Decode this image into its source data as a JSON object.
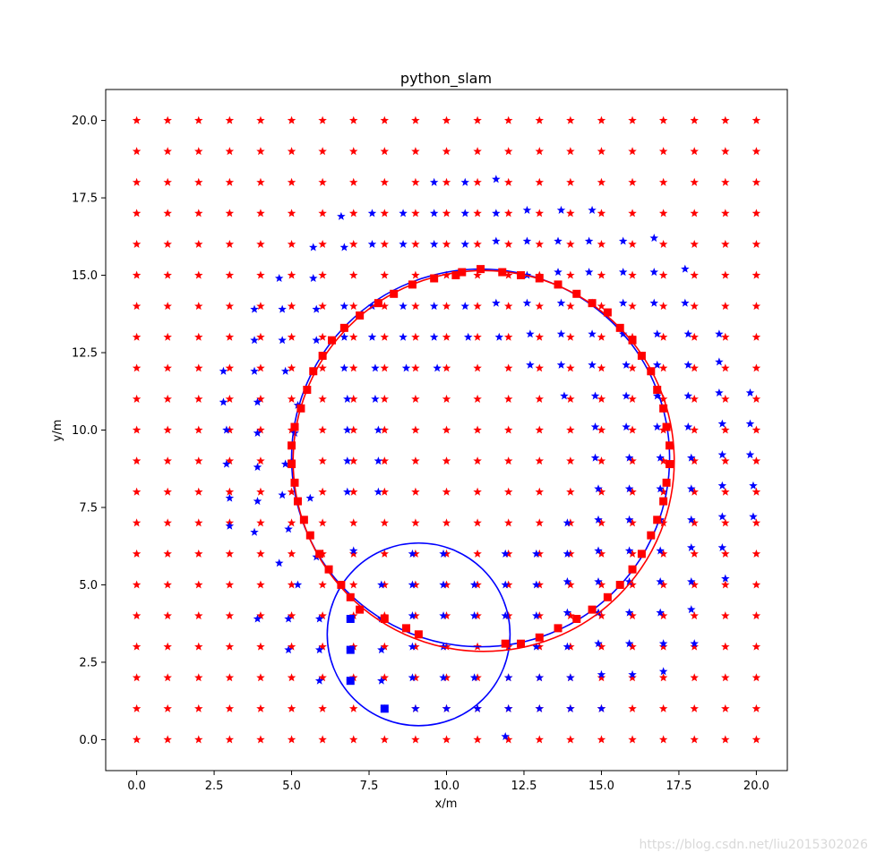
{
  "chart_data": {
    "type": "scatter",
    "title": "python_slam",
    "xlabel": "x/m",
    "ylabel": "y/m",
    "xlim": [
      -1.0,
      21.0
    ],
    "ylim": [
      -1.0,
      21.0
    ],
    "xticks": [
      0.0,
      2.5,
      5.0,
      7.5,
      10.0,
      12.5,
      15.0,
      17.5,
      20.0
    ],
    "yticks": [
      0.0,
      2.5,
      5.0,
      7.5,
      10.0,
      12.5,
      15.0,
      17.5,
      20.0
    ],
    "grid": false,
    "legend": "none",
    "landmarks_true": {
      "name": "",
      "color": "#ff0000",
      "marker": "star",
      "x_range": [
        0,
        20
      ],
      "y_range": [
        0,
        20
      ],
      "step": 1
    },
    "landmarks_estimated": {
      "name": "",
      "color": "#0000ff",
      "marker": "star",
      "points": [
        [
          5.2,
          5.0
        ],
        [
          4.6,
          5.7
        ],
        [
          5.8,
          5.9
        ],
        [
          7.0,
          6.1
        ],
        [
          4.9,
          6.8
        ],
        [
          3.8,
          6.7
        ],
        [
          3.0,
          6.9
        ],
        [
          5.6,
          7.8
        ],
        [
          4.7,
          7.9
        ],
        [
          3.9,
          7.7
        ],
        [
          3.0,
          7.8
        ],
        [
          4.8,
          8.9
        ],
        [
          3.9,
          8.8
        ],
        [
          2.9,
          8.9
        ],
        [
          5.1,
          9.9
        ],
        [
          3.9,
          9.9
        ],
        [
          2.9,
          10.0
        ],
        [
          5.2,
          10.8
        ],
        [
          3.9,
          10.9
        ],
        [
          2.8,
          10.9
        ],
        [
          4.8,
          11.9
        ],
        [
          3.8,
          11.9
        ],
        [
          2.8,
          11.9
        ],
        [
          3.8,
          12.9
        ],
        [
          4.7,
          12.9
        ],
        [
          5.8,
          12.9
        ],
        [
          3.8,
          13.9
        ],
        [
          4.7,
          13.9
        ],
        [
          5.8,
          13.9
        ],
        [
          4.6,
          14.9
        ],
        [
          5.7,
          14.9
        ],
        [
          5.7,
          15.9
        ],
        [
          6.7,
          15.9
        ],
        [
          6.6,
          16.9
        ],
        [
          7.6,
          17.0
        ],
        [
          8.6,
          17.0
        ],
        [
          9.6,
          17.0
        ],
        [
          10.6,
          17.0
        ],
        [
          11.6,
          17.0
        ],
        [
          12.6,
          17.1
        ],
        [
          13.7,
          17.1
        ],
        [
          14.7,
          17.1
        ],
        [
          9.6,
          18.0
        ],
        [
          10.6,
          18.0
        ],
        [
          11.6,
          18.1
        ],
        [
          7.6,
          16.0
        ],
        [
          8.6,
          16.0
        ],
        [
          9.6,
          16.0
        ],
        [
          10.6,
          16.0
        ],
        [
          11.6,
          16.1
        ],
        [
          12.6,
          16.1
        ],
        [
          13.6,
          16.1
        ],
        [
          14.6,
          16.1
        ],
        [
          15.7,
          16.1
        ],
        [
          16.7,
          16.2
        ],
        [
          15.7,
          15.1
        ],
        [
          16.7,
          15.1
        ],
        [
          17.7,
          15.2
        ],
        [
          14.6,
          15.1
        ],
        [
          13.6,
          15.1
        ],
        [
          12.6,
          15.0
        ],
        [
          6.7,
          14.0
        ],
        [
          7.6,
          14.0
        ],
        [
          8.6,
          14.0
        ],
        [
          9.6,
          14.0
        ],
        [
          10.6,
          14.0
        ],
        [
          11.6,
          14.1
        ],
        [
          12.6,
          14.1
        ],
        [
          13.7,
          14.1
        ],
        [
          14.7,
          14.1
        ],
        [
          15.7,
          14.1
        ],
        [
          16.7,
          14.1
        ],
        [
          17.7,
          14.1
        ],
        [
          6.7,
          13.0
        ],
        [
          7.6,
          13.0
        ],
        [
          8.6,
          13.0
        ],
        [
          9.6,
          13.0
        ],
        [
          10.7,
          13.0
        ],
        [
          11.7,
          13.0
        ],
        [
          12.7,
          13.1
        ],
        [
          13.7,
          13.1
        ],
        [
          14.7,
          13.1
        ],
        [
          15.7,
          13.1
        ],
        [
          16.8,
          13.1
        ],
        [
          17.8,
          13.1
        ],
        [
          18.8,
          13.1
        ],
        [
          6.7,
          12.0
        ],
        [
          7.7,
          12.0
        ],
        [
          8.7,
          12.0
        ],
        [
          9.7,
          12.0
        ],
        [
          12.7,
          12.1
        ],
        [
          13.7,
          12.1
        ],
        [
          14.7,
          12.1
        ],
        [
          15.8,
          12.1
        ],
        [
          16.8,
          12.1
        ],
        [
          17.8,
          12.1
        ],
        [
          18.8,
          12.2
        ],
        [
          6.8,
          11.0
        ],
        [
          7.7,
          11.0
        ],
        [
          13.8,
          11.1
        ],
        [
          14.8,
          11.1
        ],
        [
          15.8,
          11.1
        ],
        [
          16.8,
          11.1
        ],
        [
          17.8,
          11.1
        ],
        [
          18.8,
          11.2
        ],
        [
          19.8,
          11.2
        ],
        [
          6.8,
          10.0
        ],
        [
          7.8,
          10.0
        ],
        [
          14.8,
          10.1
        ],
        [
          15.8,
          10.1
        ],
        [
          16.8,
          10.1
        ],
        [
          17.8,
          10.1
        ],
        [
          18.9,
          10.2
        ],
        [
          19.8,
          10.2
        ],
        [
          6.8,
          9.0
        ],
        [
          7.8,
          9.0
        ],
        [
          14.8,
          9.1
        ],
        [
          15.9,
          9.1
        ],
        [
          16.9,
          9.1
        ],
        [
          17.9,
          9.1
        ],
        [
          18.9,
          9.2
        ],
        [
          19.8,
          9.2
        ],
        [
          6.8,
          8.0
        ],
        [
          7.8,
          8.0
        ],
        [
          14.9,
          8.1
        ],
        [
          15.9,
          8.1
        ],
        [
          16.9,
          8.1
        ],
        [
          17.9,
          8.1
        ],
        [
          18.9,
          8.2
        ],
        [
          19.9,
          8.2
        ],
        [
          13.9,
          7.0
        ],
        [
          14.9,
          7.1
        ],
        [
          15.9,
          7.1
        ],
        [
          16.9,
          7.1
        ],
        [
          17.9,
          7.1
        ],
        [
          18.9,
          7.2
        ],
        [
          19.9,
          7.2
        ],
        [
          8.9,
          6.0
        ],
        [
          9.9,
          6.0
        ],
        [
          11.9,
          6.0
        ],
        [
          12.9,
          6.0
        ],
        [
          13.9,
          6.0
        ],
        [
          14.9,
          6.1
        ],
        [
          15.9,
          6.1
        ],
        [
          16.9,
          6.1
        ],
        [
          17.9,
          6.2
        ],
        [
          18.9,
          6.2
        ],
        [
          7.9,
          5.0
        ],
        [
          8.9,
          5.0
        ],
        [
          9.9,
          5.0
        ],
        [
          10.9,
          5.0
        ],
        [
          11.9,
          5.0
        ],
        [
          12.9,
          5.0
        ],
        [
          13.9,
          5.1
        ],
        [
          14.9,
          5.1
        ],
        [
          15.9,
          5.1
        ],
        [
          16.9,
          5.1
        ],
        [
          17.9,
          5.1
        ],
        [
          19.0,
          5.2
        ],
        [
          5.9,
          3.9
        ],
        [
          6.9,
          3.9
        ],
        [
          7.9,
          3.9
        ],
        [
          8.9,
          4.0
        ],
        [
          9.9,
          4.0
        ],
        [
          10.9,
          4.0
        ],
        [
          11.9,
          4.0
        ],
        [
          12.9,
          4.0
        ],
        [
          13.9,
          4.1
        ],
        [
          14.9,
          4.1
        ],
        [
          15.9,
          4.1
        ],
        [
          16.9,
          4.1
        ],
        [
          17.9,
          4.2
        ],
        [
          4.9,
          3.9
        ],
        [
          3.9,
          3.9
        ],
        [
          4.9,
          2.9
        ],
        [
          5.9,
          2.9
        ],
        [
          6.9,
          2.9
        ],
        [
          7.9,
          2.9
        ],
        [
          8.9,
          3.0
        ],
        [
          9.9,
          3.0
        ],
        [
          12.9,
          3.0
        ],
        [
          13.9,
          3.0
        ],
        [
          14.9,
          3.1
        ],
        [
          15.9,
          3.1
        ],
        [
          17.0,
          3.1
        ],
        [
          18.0,
          3.1
        ],
        [
          5.9,
          1.9
        ],
        [
          6.9,
          1.9
        ],
        [
          7.9,
          1.9
        ],
        [
          8.9,
          2.0
        ],
        [
          9.9,
          2.0
        ],
        [
          10.9,
          2.0
        ],
        [
          12.0,
          2.0
        ],
        [
          13.0,
          2.0
        ],
        [
          14.0,
          2.0
        ],
        [
          15.0,
          2.1
        ],
        [
          16.0,
          2.1
        ],
        [
          17.0,
          2.2
        ],
        [
          9.0,
          1.0
        ],
        [
          10.0,
          1.0
        ],
        [
          11.0,
          1.0
        ],
        [
          12.0,
          1.0
        ],
        [
          13.0,
          1.0
        ],
        [
          14.0,
          1.0
        ],
        [
          15.0,
          1.0
        ],
        [
          11.9,
          0.1
        ]
      ]
    },
    "trajectory_true": {
      "name": "",
      "color": "#ff0000",
      "marker": "square",
      "points": [
        [
          9.1,
          3.4
        ],
        [
          8.7,
          3.6
        ],
        [
          8.0,
          3.9
        ],
        [
          7.2,
          4.2
        ],
        [
          6.9,
          4.6
        ],
        [
          6.6,
          5.0
        ],
        [
          6.2,
          5.5
        ],
        [
          5.9,
          6.0
        ],
        [
          5.6,
          6.6
        ],
        [
          5.4,
          7.1
        ],
        [
          5.2,
          7.7
        ],
        [
          5.1,
          8.3
        ],
        [
          5.0,
          8.9
        ],
        [
          5.0,
          9.5
        ],
        [
          5.1,
          10.1
        ],
        [
          5.3,
          10.7
        ],
        [
          5.5,
          11.3
        ],
        [
          5.7,
          11.9
        ],
        [
          6.0,
          12.4
        ],
        [
          6.3,
          12.9
        ],
        [
          6.7,
          13.3
        ],
        [
          7.2,
          13.7
        ],
        [
          7.8,
          14.1
        ],
        [
          8.3,
          14.4
        ],
        [
          8.9,
          14.7
        ],
        [
          9.6,
          14.9
        ],
        [
          10.3,
          15.0
        ],
        [
          10.5,
          15.1
        ],
        [
          11.1,
          15.2
        ],
        [
          11.8,
          15.1
        ],
        [
          12.4,
          15.0
        ],
        [
          13.0,
          14.9
        ],
        [
          13.6,
          14.7
        ],
        [
          14.2,
          14.4
        ],
        [
          14.7,
          14.1
        ],
        [
          15.2,
          13.8
        ],
        [
          15.6,
          13.3
        ],
        [
          16.0,
          12.9
        ],
        [
          16.3,
          12.4
        ],
        [
          16.6,
          11.9
        ],
        [
          16.8,
          11.3
        ],
        [
          17.0,
          10.7
        ],
        [
          17.1,
          10.1
        ],
        [
          17.2,
          9.5
        ],
        [
          17.2,
          8.9
        ],
        [
          17.1,
          8.3
        ],
        [
          17.0,
          7.7
        ],
        [
          16.8,
          7.1
        ],
        [
          16.6,
          6.6
        ],
        [
          16.3,
          6.0
        ],
        [
          16.0,
          5.5
        ],
        [
          15.6,
          5.0
        ],
        [
          15.2,
          4.6
        ],
        [
          14.7,
          4.2
        ],
        [
          14.2,
          3.9
        ],
        [
          13.6,
          3.6
        ],
        [
          13.0,
          3.3
        ],
        [
          12.4,
          3.1
        ],
        [
          11.9,
          3.1
        ]
      ]
    },
    "trajectory_estimated_markers": {
      "name": "",
      "color": "#0000ff",
      "marker": "square",
      "points": [
        [
          6.9,
          3.9
        ],
        [
          6.9,
          2.9
        ],
        [
          6.9,
          1.9
        ],
        [
          8.0,
          1.0
        ]
      ]
    },
    "path_true": {
      "name": "",
      "color": "#ff0000",
      "center": [
        11.2,
        9.0
      ],
      "radius": 6.15
    },
    "path_estimated": {
      "name": "",
      "color": "#0000ff",
      "circle_small": {
        "center": [
          9.1,
          3.4
        ],
        "radius": 2.95
      },
      "loop": {
        "center": [
          11.1,
          9.1
        ],
        "radius": 6.1
      }
    }
  },
  "watermark": "https://blog.csdn.net/liu2015302026"
}
